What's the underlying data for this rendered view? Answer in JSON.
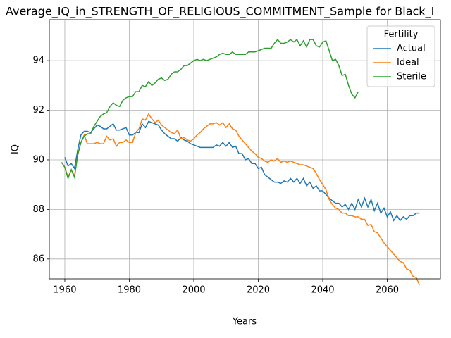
{
  "chart_data": {
    "type": "line",
    "title": "Average_IQ_in_STRENGTH_OF_RELIGIOUS_COMMITMENT_Sample for Black_I",
    "xlabel": "Years",
    "ylabel": "IQ",
    "x": [
      1959,
      1960,
      1961,
      1962,
      1963,
      1964,
      1965,
      1966,
      1967,
      1968,
      1969,
      1970,
      1971,
      1972,
      1973,
      1974,
      1975,
      1976,
      1977,
      1978,
      1979,
      1980,
      1981,
      1982,
      1983,
      1984,
      1985,
      1986,
      1987,
      1988,
      1989,
      1990,
      1991,
      1992,
      1993,
      1994,
      1995,
      1996,
      1997,
      1998,
      1999,
      2000,
      2001,
      2002,
      2003,
      2004,
      2005,
      2006,
      2007,
      2008,
      2009,
      2010,
      2011,
      2012,
      2013,
      2014,
      2015,
      2016,
      2017,
      2018,
      2019,
      2020,
      2021,
      2022,
      2023,
      2024,
      2025,
      2026,
      2027,
      2028,
      2029,
      2030,
      2031,
      2032,
      2033,
      2034,
      2035,
      2036,
      2037,
      2038,
      2039,
      2040,
      2041,
      2042,
      2043,
      2044,
      2045,
      2046,
      2047,
      2048,
      2049,
      2050,
      2051,
      2052,
      2053,
      2054,
      2055,
      2056,
      2057,
      2058,
      2059,
      2060,
      2061,
      2062,
      2063,
      2064,
      2065,
      2066,
      2067,
      2068,
      2069,
      2070
    ],
    "series": [
      {
        "name": "Actual",
        "color": "#1f77b4",
        "values": [
          null,
          90.1,
          89.75,
          89.85,
          89.65,
          90.4,
          91.0,
          91.15,
          91.15,
          91.1,
          91.25,
          91.4,
          91.35,
          91.25,
          91.25,
          91.35,
          91.45,
          91.2,
          91.2,
          91.25,
          91.3,
          91.0,
          91.0,
          91.1,
          91.1,
          91.45,
          91.3,
          91.55,
          91.5,
          91.45,
          91.4,
          91.2,
          91.05,
          90.95,
          90.85,
          90.85,
          90.75,
          90.9,
          90.8,
          90.75,
          90.65,
          90.6,
          90.55,
          90.5,
          90.5,
          90.5,
          90.5,
          90.5,
          90.6,
          90.55,
          90.7,
          90.55,
          90.7,
          90.5,
          90.55,
          90.25,
          90.25,
          90.0,
          90.05,
          89.85,
          89.85,
          89.65,
          89.7,
          89.4,
          89.3,
          89.2,
          89.1,
          89.1,
          89.05,
          89.15,
          89.1,
          89.25,
          89.1,
          89.25,
          89.05,
          89.25,
          88.95,
          89.1,
          88.85,
          88.95,
          88.75,
          88.75,
          88.6,
          88.45,
          88.35,
          88.25,
          88.25,
          88.1,
          88.2,
          88.0,
          88.25,
          88.0,
          88.4,
          88.1,
          88.45,
          88.1,
          88.4,
          87.95,
          88.25,
          87.85,
          88.05,
          87.7,
          87.9,
          87.55,
          87.75,
          87.55,
          87.7,
          87.6,
          87.75,
          87.75,
          87.85,
          87.85
        ]
      },
      {
        "name": "Ideal",
        "color": "#ff7f0e",
        "values": [
          89.9,
          89.7,
          89.3,
          89.6,
          89.35,
          90.2,
          90.7,
          91.0,
          90.65,
          90.65,
          90.65,
          90.7,
          90.65,
          90.65,
          90.95,
          90.8,
          90.85,
          90.55,
          90.7,
          90.7,
          90.8,
          90.7,
          90.7,
          91.1,
          91.25,
          91.65,
          91.6,
          91.85,
          91.65,
          91.5,
          91.6,
          91.4,
          91.3,
          91.2,
          91.1,
          91.05,
          91.2,
          90.85,
          90.9,
          90.8,
          90.75,
          90.85,
          91.0,
          91.1,
          91.25,
          91.35,
          91.45,
          91.45,
          91.5,
          91.4,
          91.5,
          91.3,
          91.45,
          91.25,
          91.2,
          90.95,
          90.8,
          90.65,
          90.5,
          90.35,
          90.25,
          90.1,
          90.05,
          89.95,
          89.9,
          90.0,
          89.95,
          90.05,
          89.9,
          89.95,
          89.9,
          89.95,
          89.9,
          89.85,
          89.8,
          89.8,
          89.75,
          89.7,
          89.65,
          89.45,
          89.2,
          89.0,
          88.8,
          88.4,
          88.2,
          88.05,
          88.0,
          87.85,
          87.85,
          87.75,
          87.75,
          87.7,
          87.7,
          87.6,
          87.6,
          87.35,
          87.4,
          87.1,
          87.05,
          86.85,
          86.65,
          86.5,
          86.35,
          86.2,
          86.05,
          85.9,
          85.85,
          85.6,
          85.55,
          85.3,
          85.25,
          84.95
        ]
      },
      {
        "name": "Sterile",
        "color": "#2ca02c",
        "values": [
          89.9,
          89.7,
          89.25,
          89.6,
          89.3,
          90.2,
          90.7,
          90.95,
          91.05,
          91.05,
          91.35,
          91.55,
          91.75,
          91.85,
          91.9,
          92.15,
          92.3,
          92.2,
          92.15,
          92.4,
          92.5,
          92.55,
          92.55,
          92.75,
          92.75,
          93.0,
          92.95,
          93.15,
          93.0,
          93.1,
          93.25,
          93.3,
          93.2,
          93.25,
          93.45,
          93.55,
          93.55,
          93.65,
          93.8,
          93.8,
          93.9,
          94.0,
          94.05,
          94.0,
          94.05,
          94.0,
          94.05,
          94.1,
          94.15,
          94.25,
          94.3,
          94.25,
          94.25,
          94.35,
          94.25,
          94.25,
          94.25,
          94.25,
          94.35,
          94.35,
          94.35,
          94.4,
          94.45,
          94.5,
          94.5,
          94.5,
          94.7,
          94.85,
          94.7,
          94.7,
          94.75,
          94.85,
          94.75,
          94.85,
          94.6,
          94.8,
          94.55,
          94.85,
          94.85,
          94.6,
          94.55,
          94.75,
          94.8,
          94.4,
          94.0,
          94.05,
          93.8,
          93.4,
          93.45,
          93.0,
          92.65,
          92.5,
          92.75,
          null,
          null,
          null,
          null,
          null,
          null,
          null,
          null,
          null,
          null,
          null,
          null,
          null,
          null,
          null,
          null,
          null,
          null,
          null
        ]
      }
    ],
    "xlim": [
      1955.2,
      2076.5
    ],
    "xticks": [
      1960,
      1980,
      2000,
      2020,
      2040,
      2060
    ],
    "ylim": [
      85.2,
      95.65
    ],
    "yticks": [
      86,
      88,
      90,
      92,
      94
    ],
    "grid": true,
    "legend_title": "Fertility",
    "legend": "upper right"
  }
}
